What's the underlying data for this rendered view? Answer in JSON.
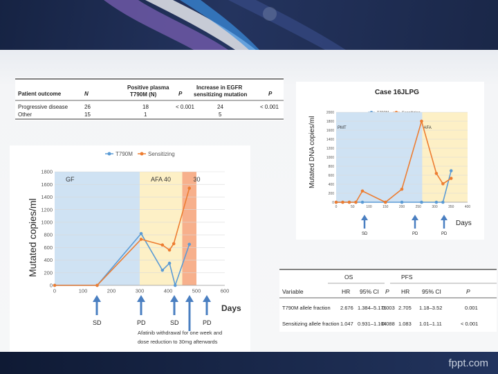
{
  "table_top": {
    "headers": [
      "Patient outcome",
      "N",
      "Positive plasma T790M (N)",
      "P",
      "Increase in EGFR sensitizing mutation",
      "P"
    ],
    "rows": [
      [
        "Progressive disease",
        "26",
        "18",
        "< 0.001",
        "24",
        "< 0.001"
      ],
      [
        "Other",
        "15",
        "1",
        "",
        "5",
        ""
      ]
    ]
  },
  "chart_left": {
    "legend": [
      "T790M",
      "Sensitizing"
    ],
    "ylabel": "Mutated copies/ml",
    "xlabel": "Days",
    "yticks": [
      "0",
      "200",
      "400",
      "600",
      "800",
      "1000",
      "1200",
      "1400",
      "1600",
      "1800"
    ],
    "xticks": [
      "0",
      "100",
      "200",
      "300",
      "400",
      "500",
      "600"
    ],
    "regions": [
      "GF",
      "AFA 40",
      "30"
    ],
    "markers": [
      "SD",
      "PD",
      "SD",
      "PD"
    ],
    "note": "Afatinib   withdrawal for one week and dose reduction to 30mg afterwards"
  },
  "chart_right": {
    "title": "Case 16JLPG",
    "legend": [
      "T790M",
      "Sensitizing"
    ],
    "ylabel": "Mutated DNA copies/ml",
    "xlabel": "Days",
    "yticks": [
      "0",
      "200",
      "400",
      "600",
      "800",
      "1000",
      "1200",
      "1400",
      "1600",
      "1800",
      "2000"
    ],
    "xticks": [
      "0",
      "50",
      "100",
      "150",
      "200",
      "250",
      "300",
      "350",
      "400"
    ],
    "regions": [
      "PMT",
      "AFA"
    ],
    "markers": [
      "SD",
      "PD",
      "PD"
    ]
  },
  "table_bottom": {
    "group_headers": [
      "OS",
      "PFS"
    ],
    "headers": [
      "Variable",
      "HR",
      "95% CI",
      "P",
      "HR",
      "95% CI",
      "P"
    ],
    "rows": [
      [
        "T790M allele fraction",
        "2.676",
        "1.384–5.176",
        "0.003",
        "2.705",
        "1.18–3.52",
        "0.001"
      ],
      [
        "Sensitizing allele fraction",
        "1.047",
        "0.931–1.104",
        "0.088",
        "1.083",
        "1.01–1.11",
        "< 0.001"
      ]
    ]
  },
  "watermark": "fppt.com",
  "chart_data": [
    {
      "type": "line",
      "xlabel": "Days",
      "ylabel": "Mutated copies/ml",
      "xlim": [
        0,
        600
      ],
      "ylim": [
        0,
        1800
      ],
      "regions": [
        {
          "label": "GF",
          "from": 0,
          "to": 300,
          "color": "#cfe2f3"
        },
        {
          "label": "AFA 40",
          "from": 300,
          "to": 450,
          "color": "#fdf0c6"
        },
        {
          "label": "30",
          "from": 450,
          "to": 500,
          "color": "#f7b08c"
        }
      ],
      "series": [
        {
          "name": "T790M",
          "color": "#5b9bd5",
          "x": [
            0,
            150,
            305,
            380,
            405,
            425,
            475
          ],
          "y": [
            0,
            0,
            820,
            240,
            350,
            0,
            650
          ]
        },
        {
          "name": "Sensitizing",
          "color": "#ed7d31",
          "x": [
            0,
            150,
            305,
            380,
            405,
            420,
            475
          ],
          "y": [
            0,
            0,
            730,
            640,
            560,
            660,
            1540
          ]
        }
      ]
    },
    {
      "type": "line",
      "title": "Case 16JLPG",
      "xlabel": "Days",
      "ylabel": "Mutated DNA copies/ml",
      "xlim": [
        0,
        400
      ],
      "ylim": [
        0,
        2000
      ],
      "regions": [
        {
          "label": "PMT",
          "from": 0,
          "to": 262,
          "color": "#cfe2f3"
        },
        {
          "label": "AFA",
          "from": 262,
          "to": 400,
          "color": "#fdf0c6"
        }
      ],
      "series": [
        {
          "name": "T790M",
          "color": "#5b9bd5",
          "x": [
            0,
            20,
            40,
            60,
            80,
            150,
            200,
            260,
            305,
            325,
            350
          ],
          "y": [
            0,
            0,
            0,
            0,
            0,
            0,
            0,
            0,
            0,
            0,
            700
          ]
        },
        {
          "name": "Sensitizing",
          "color": "#ed7d31",
          "x": [
            0,
            20,
            40,
            60,
            80,
            150,
            200,
            260,
            305,
            325,
            350
          ],
          "y": [
            0,
            0,
            0,
            0,
            250,
            0,
            290,
            1800,
            640,
            410,
            530
          ]
        }
      ]
    }
  ]
}
